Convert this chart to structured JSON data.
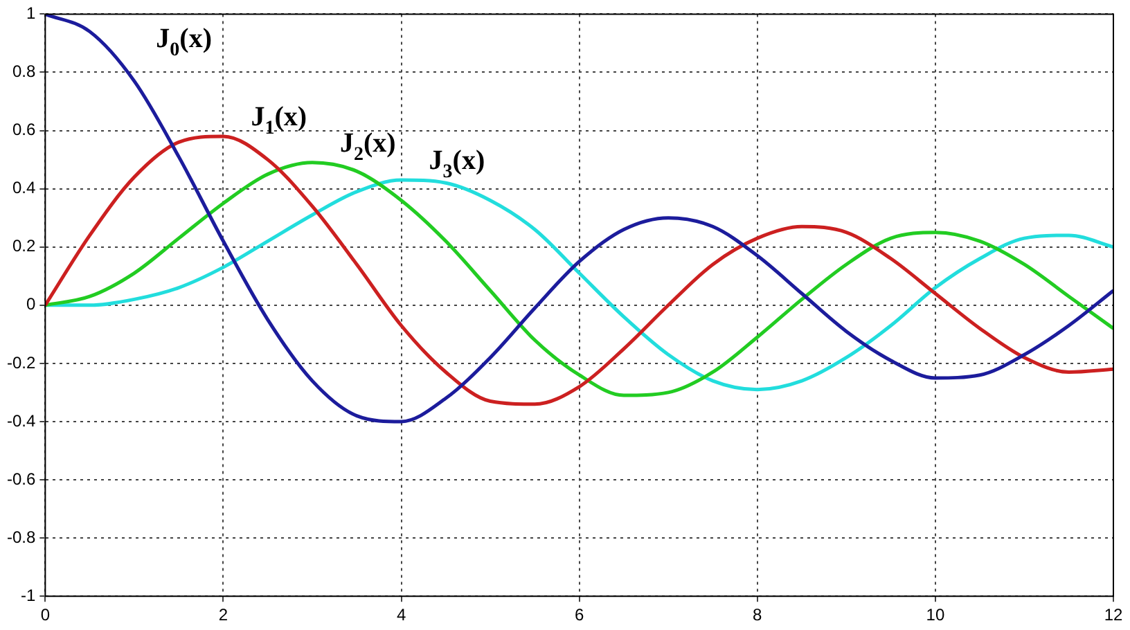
{
  "chart_data": {
    "type": "line",
    "x": [
      0,
      0.5,
      1,
      1.5,
      2,
      2.5,
      3,
      3.5,
      4,
      4.5,
      5,
      5.5,
      6,
      6.5,
      7,
      7.5,
      8,
      8.5,
      9,
      9.5,
      10,
      10.5,
      11,
      11.5,
      12
    ],
    "series": [
      {
        "name": "J$_{0}$(x)",
        "color": "#1c1c9c",
        "values": [
          1,
          0.94,
          0.77,
          0.51,
          0.22,
          -0.05,
          -0.26,
          -0.38,
          -0.4,
          -0.32,
          -0.18,
          -0.01,
          0.15,
          0.26,
          0.3,
          0.27,
          0.17,
          0.04,
          -0.09,
          -0.19,
          -0.25,
          -0.24,
          -0.17,
          -0.07,
          0.05
        ]
      },
      {
        "name": "J$_{1}$(x)",
        "color": "#cc2020",
        "values": [
          0,
          0.24,
          0.44,
          0.56,
          0.58,
          0.5,
          0.34,
          0.14,
          -0.07,
          -0.23,
          -0.33,
          -0.34,
          -0.28,
          -0.15,
          0,
          0.14,
          0.23,
          0.27,
          0.25,
          0.16,
          0.04,
          -0.08,
          -0.18,
          -0.23,
          -0.22
        ]
      },
      {
        "name": "J$_{2}$(x)",
        "color": "#22cc22",
        "values": [
          0,
          0.03,
          0.11,
          0.23,
          0.35,
          0.45,
          0.49,
          0.46,
          0.36,
          0.22,
          0.05,
          -0.12,
          -0.24,
          -0.31,
          -0.3,
          -0.23,
          -0.11,
          0.02,
          0.14,
          0.23,
          0.25,
          0.22,
          0.14,
          0.03,
          -0.08
        ]
      },
      {
        "name": "J$_{3}$(x)",
        "color": "#22dddd",
        "values": [
          0,
          0,
          0.02,
          0.06,
          0.13,
          0.22,
          0.31,
          0.39,
          0.43,
          0.42,
          0.36,
          0.26,
          0.11,
          -0.04,
          -0.17,
          -0.26,
          -0.29,
          -0.26,
          -0.18,
          -0.07,
          0.06,
          0.16,
          0.23,
          0.24,
          0.2
        ]
      }
    ],
    "xlim": [
      0,
      12
    ],
    "xticks": [
      0,
      2,
      4,
      6,
      8,
      10,
      12
    ],
    "ylim": [
      -1,
      1
    ],
    "yticks": [
      -1,
      -0.8,
      -0.6,
      -0.4,
      -0.2,
      0,
      0.2,
      0.4,
      0.6,
      0.8,
      1
    ],
    "grid": true,
    "legend": false,
    "marker": "none",
    "line_style": "solid"
  }
}
